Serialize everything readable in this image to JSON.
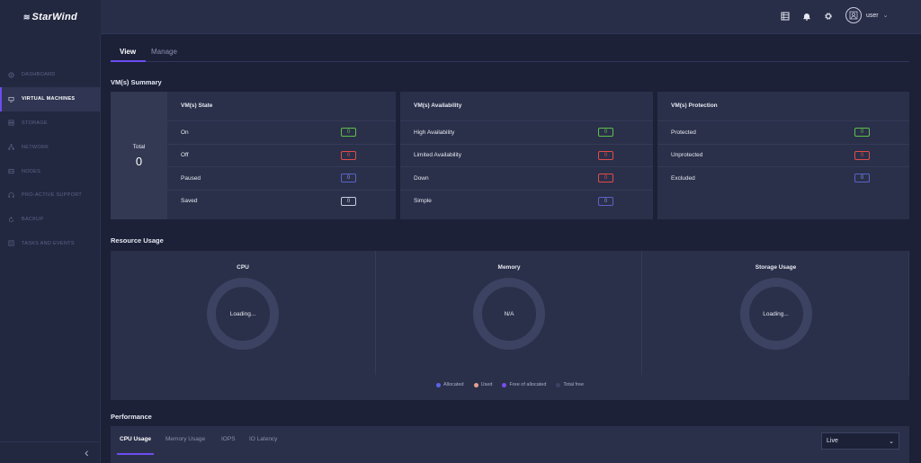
{
  "brand": {
    "name": "StarWind",
    "logo_icon": "wave-logo-icon"
  },
  "sidebar": {
    "items": [
      {
        "label": "DASHBOARD",
        "icon": "dashboard-icon",
        "active": false
      },
      {
        "label": "VIRTUAL MACHINES",
        "icon": "vm-icon",
        "active": true
      },
      {
        "label": "STORAGE",
        "icon": "storage-icon",
        "active": false
      },
      {
        "label": "NETWORK",
        "icon": "network-icon",
        "active": false
      },
      {
        "label": "NODES",
        "icon": "nodes-icon",
        "active": false
      },
      {
        "label": "PRO-ACTIVE SUPPORT",
        "icon": "support-icon",
        "active": false
      },
      {
        "label": "BACKUP",
        "icon": "backup-icon",
        "active": false
      },
      {
        "label": "TASKS AND EVENTS",
        "icon": "tasks-icon",
        "active": false
      }
    ],
    "collapse_glyph": "‹"
  },
  "header": {
    "user_name": "user",
    "chevron": "⌄"
  },
  "main": {
    "tabs": [
      {
        "label": "View"
      },
      {
        "label": "Manage"
      }
    ],
    "summary_title": "VM(s) Summary",
    "total": {
      "label": "Total",
      "value": "0"
    },
    "state": {
      "title": "VM(s) State",
      "rows": [
        {
          "label": "On",
          "value": "0"
        },
        {
          "label": "Off",
          "value": "0"
        },
        {
          "label": "Paused",
          "value": "0"
        },
        {
          "label": "Saved",
          "value": "0"
        }
      ]
    },
    "availability": {
      "title": "VM(s) Availability",
      "rows": [
        {
          "label": "High Availability",
          "value": "0"
        },
        {
          "label": "Limited Availability",
          "value": "0"
        },
        {
          "label": "Down",
          "value": "0"
        },
        {
          "label": "Simple",
          "value": "0"
        }
      ]
    },
    "protection": {
      "title": "VM(s) Protection",
      "rows": [
        {
          "label": "Protected",
          "value": "0"
        },
        {
          "label": "Unprotected",
          "value": "0"
        },
        {
          "label": "Excluded",
          "value": "0"
        }
      ]
    },
    "resource_title": "Resource Usage",
    "resource": {
      "cpu": {
        "title": "CPU",
        "status": "Loading..."
      },
      "memory": {
        "title": "Memory",
        "status": "N/A"
      },
      "storage": {
        "title": "Storage Usage",
        "status": "Loading..."
      }
    },
    "legend": [
      {
        "label": "Allocated",
        "color": "#5a63e8"
      },
      {
        "label": "Used",
        "color": "#e8a090"
      },
      {
        "label": "Free of allocated",
        "color": "#7b4df0"
      },
      {
        "label": "Total free",
        "color": "#3c4261"
      }
    ],
    "performance_title": "Performance",
    "performance_tabs": [
      {
        "label": "CPU Usage"
      },
      {
        "label": "Memory Usage"
      },
      {
        "label": "IOPS"
      },
      {
        "label": "IO Latency"
      }
    ],
    "live_select": {
      "value": "Live",
      "chevron": "⌄"
    }
  },
  "colors": {
    "accent": "#6c4df0",
    "green": "#5fbf4a",
    "red": "#e24b4b",
    "blue": "#5a63c8"
  }
}
